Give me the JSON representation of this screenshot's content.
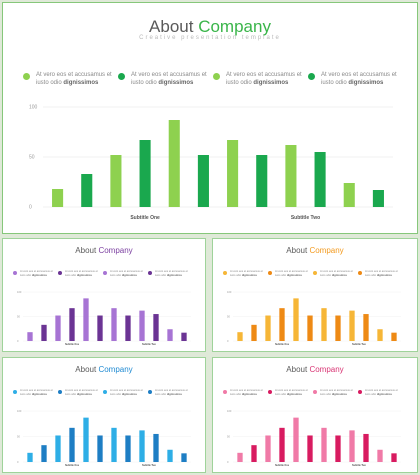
{
  "main": {
    "title": "About",
    "title_accent": "Company",
    "subtitle": "Creative presentation template",
    "legend": [
      {
        "line1": "At vero eos et accusamus et",
        "line2_pre": "iusto odio ",
        "line2_bold": "dignissimos"
      },
      {
        "line1": "At vero eos et accusamus et",
        "line2_pre": "iusto odio ",
        "line2_bold": "dignissimos"
      },
      {
        "line1": "At vero eos et accusamus et",
        "line2_pre": "iusto odio ",
        "line2_bold": "dignissimos"
      },
      {
        "line1": "At vero eos et accusamus et",
        "line2_pre": "iusto odio ",
        "line2_bold": "dignissimos"
      }
    ]
  },
  "thumbs": [
    {
      "theme": "purple",
      "title": "About",
      "title_accent": "Company",
      "subtitle_one": "Subtitle One",
      "subtitle_two": "Subtitle Two",
      "colors": {
        "accent": "#7b3fa0",
        "light": "#a774d4",
        "dark": "#6b3494"
      }
    },
    {
      "theme": "orange",
      "title": "About",
      "title_accent": "Company",
      "subtitle_one": "Subtitle One",
      "subtitle_two": "Subtitle Two",
      "colors": {
        "accent": "#f39a1e",
        "light": "#f6b637",
        "dark": "#ee8a15"
      }
    },
    {
      "theme": "blue",
      "title": "About",
      "title_accent": "Company",
      "subtitle_one": "Subtitle One",
      "subtitle_two": "Subtitle Two",
      "colors": {
        "accent": "#1f8ad2",
        "light": "#2eaee6",
        "dark": "#1e7ec4"
      }
    },
    {
      "theme": "pink",
      "title": "About",
      "title_accent": "Company",
      "subtitle_one": "Subtitle One",
      "subtitle_two": "Subtitle Two",
      "colors": {
        "accent": "#d93574",
        "light": "#f07aa7",
        "dark": "#d81b60"
      }
    }
  ],
  "chart_data": {
    "type": "bar",
    "ylim": [
      0,
      100
    ],
    "yticks": [
      "100",
      "50",
      "0"
    ],
    "category_labels": [
      "Subtitle One",
      "Subtitle Two"
    ],
    "values": [
      18,
      33,
      52,
      67,
      87,
      52,
      67,
      52,
      62,
      55,
      24,
      17
    ],
    "bar_tone": [
      "light",
      "dark",
      "light",
      "dark",
      "light",
      "dark",
      "light",
      "dark",
      "light",
      "dark",
      "light",
      "dark"
    ]
  },
  "colors": {
    "accent": "#3ab54a",
    "light": "#8ed14f",
    "dark": "#1aa84e",
    "gridline": "#ececec",
    "title": "#5a5a5a"
  }
}
